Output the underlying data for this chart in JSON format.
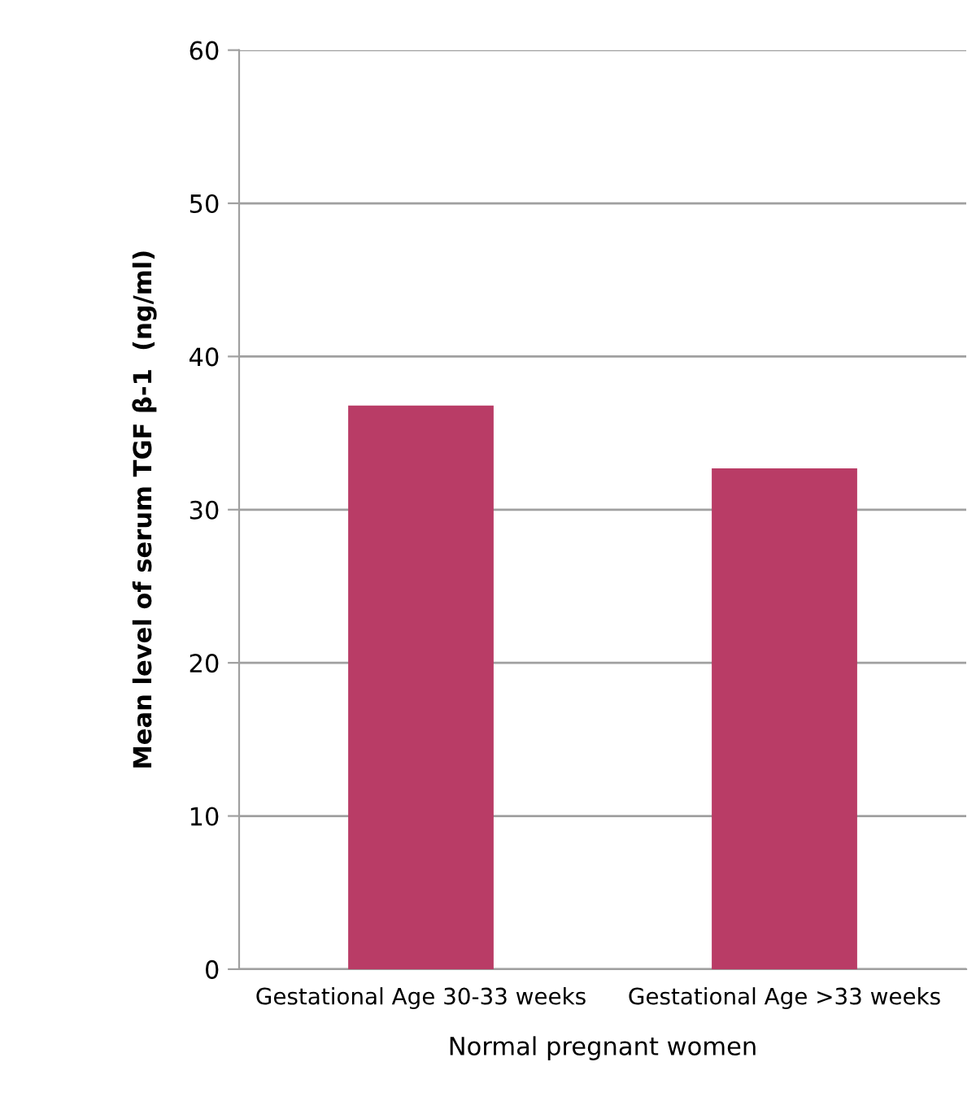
{
  "chart_data": {
    "type": "bar",
    "categories": [
      "Gestational Age 30-33 weeks",
      "Gestational Age >33 weeks"
    ],
    "values": [
      36.8,
      32.7
    ],
    "color": "#b93c66",
    "ylabel": "Mean level of serum TGF β-1  (ng/ml)",
    "xlabel": "Normal pregnant women",
    "ylim": [
      0,
      60
    ],
    "yticks": [
      0,
      10,
      20,
      30,
      40,
      50,
      60
    ],
    "grid": "y"
  }
}
